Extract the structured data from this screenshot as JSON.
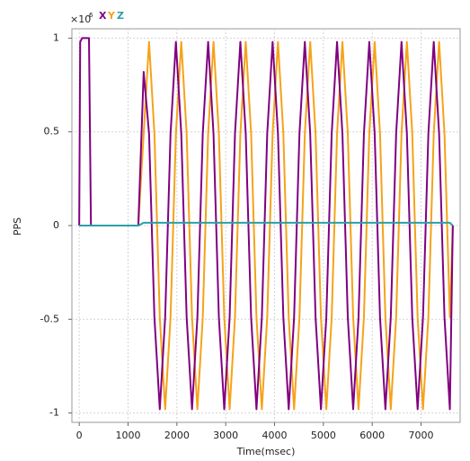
{
  "chart_data": {
    "type": "line",
    "y_multiplier": {
      "base": "×10",
      "exponent": "6"
    },
    "x_label": "Time(msec)",
    "y_label": "PPS",
    "x": [
      0,
      20,
      60,
      200,
      240,
      1210,
      1320,
      1430,
      1540,
      1650,
      1760,
      1870,
      1980,
      2090,
      2200,
      2310,
      2420,
      2530,
      2640,
      2750,
      2860,
      2970,
      3080,
      3190,
      3300,
      3410,
      3520,
      3630,
      3740,
      3850,
      3960,
      4070,
      4180,
      4290,
      4400,
      4510,
      4620,
      4730,
      4840,
      4950,
      5060,
      5170,
      5280,
      5390,
      5500,
      5610,
      5720,
      5830,
      5940,
      6050,
      6160,
      6270,
      6380,
      6490,
      6600,
      6710,
      6820,
      6930,
      7040,
      7150,
      7260,
      7370,
      7480,
      7590,
      7650
    ],
    "series": [
      {
        "name": "X",
        "color": "#800080",
        "values": [
          0,
          0.98,
          1,
          1,
          0,
          0,
          0.82,
          0.49,
          -0.49,
          -0.98,
          -0.49,
          0.49,
          0.98,
          0.49,
          -0.49,
          -0.98,
          -0.49,
          0.49,
          0.98,
          0.49,
          -0.49,
          -0.98,
          -0.49,
          0.49,
          0.98,
          0.49,
          -0.49,
          -0.98,
          -0.49,
          0.49,
          0.98,
          0.49,
          -0.49,
          -0.98,
          -0.49,
          0.49,
          0.98,
          0.49,
          -0.49,
          -0.98,
          -0.49,
          0.49,
          0.98,
          0.49,
          -0.49,
          -0.98,
          -0.49,
          0.49,
          0.98,
          0.49,
          -0.49,
          -0.98,
          -0.49,
          0.49,
          0.98,
          0.49,
          -0.49,
          -0.98,
          -0.49,
          0.49,
          0.98,
          0.49,
          -0.49,
          -0.98,
          0
        ]
      },
      {
        "name": "Y",
        "color": "#f5a31a",
        "values": [
          0,
          0,
          0,
          0,
          0,
          0,
          0.49,
          0.98,
          0.49,
          -0.49,
          -0.98,
          -0.49,
          0.49,
          0.98,
          0.49,
          -0.49,
          -0.98,
          -0.49,
          0.49,
          0.98,
          0.49,
          -0.49,
          -0.98,
          -0.49,
          0.49,
          0.98,
          0.49,
          -0.49,
          -0.98,
          -0.49,
          0.49,
          0.98,
          0.49,
          -0.49,
          -0.98,
          -0.49,
          0.49,
          0.98,
          0.49,
          -0.49,
          -0.98,
          -0.49,
          0.49,
          0.98,
          0.49,
          -0.49,
          -0.98,
          -0.49,
          0.49,
          0.98,
          0.49,
          -0.49,
          -0.98,
          -0.49,
          0.49,
          0.98,
          0.49,
          -0.49,
          -0.98,
          -0.49,
          0.49,
          0.98,
          0.49,
          -0.49,
          0
        ]
      },
      {
        "name": "Z",
        "color": "#2aa0a8",
        "values": [
          0,
          0,
          0,
          0,
          0,
          0,
          0.015,
          0.015,
          0.015,
          0.015,
          0.015,
          0.015,
          0.015,
          0.015,
          0.015,
          0.015,
          0.015,
          0.015,
          0.015,
          0.015,
          0.015,
          0.015,
          0.015,
          0.015,
          0.015,
          0.015,
          0.015,
          0.015,
          0.015,
          0.015,
          0.015,
          0.015,
          0.015,
          0.015,
          0.015,
          0.015,
          0.015,
          0.015,
          0.015,
          0.015,
          0.015,
          0.015,
          0.015,
          0.015,
          0.015,
          0.015,
          0.015,
          0.015,
          0.015,
          0.015,
          0.015,
          0.015,
          0.015,
          0.015,
          0.015,
          0.015,
          0.015,
          0.015,
          0.015,
          0.015,
          0.015,
          0.015,
          0.015,
          0.015,
          0
        ]
      }
    ],
    "xlim": [
      -150,
      7800
    ],
    "ylim": [
      -1.05,
      1.05
    ],
    "xticks": [
      0,
      1000,
      2000,
      3000,
      4000,
      5000,
      6000,
      7000
    ],
    "yticks": [
      -1,
      -0.5,
      0,
      0.5,
      1
    ],
    "grid": true
  }
}
